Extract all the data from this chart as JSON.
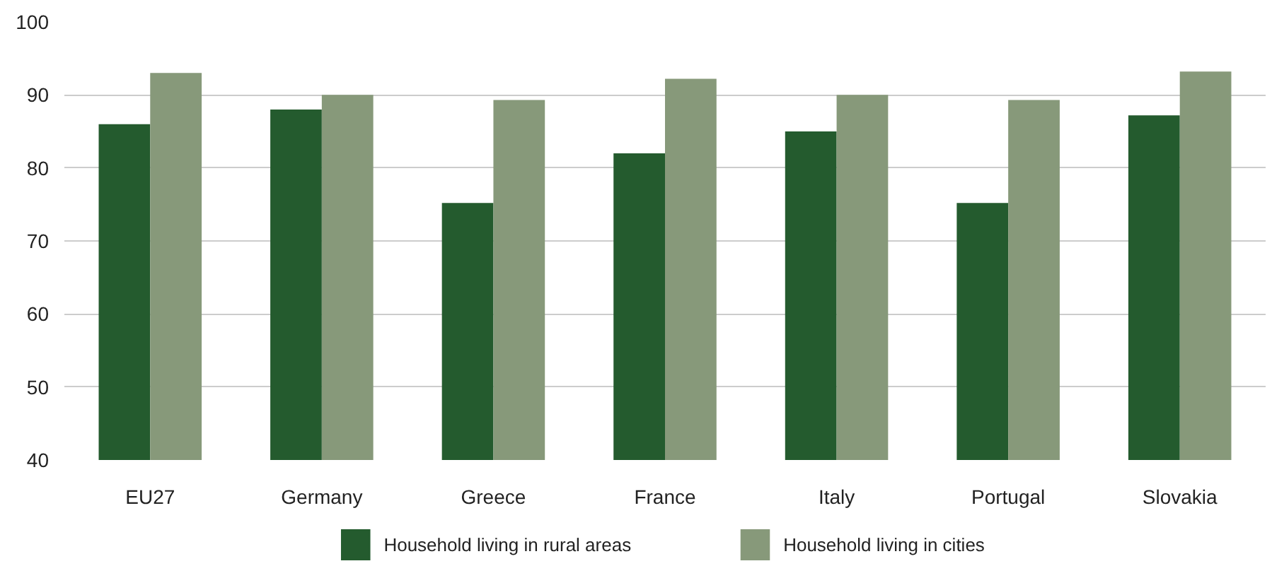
{
  "chart_data": {
    "type": "bar",
    "categories": [
      "EU27",
      "Germany",
      "Greece",
      "France",
      "Italy",
      "Portugal",
      "Slovakia"
    ],
    "series": [
      {
        "name": "Household living in rural areas",
        "color": "#245b2e",
        "values": [
          86,
          88,
          75.2,
          82,
          85,
          75.2,
          87.2
        ]
      },
      {
        "name": "Household living in cities",
        "color": "#87997a",
        "values": [
          93,
          90,
          89.3,
          92.2,
          90,
          89.3,
          93.2
        ]
      }
    ],
    "ylim": [
      40,
      100
    ],
    "yticks": [
      40,
      50,
      60,
      70,
      80,
      90,
      100
    ],
    "grid": "y",
    "legend": "bottom"
  }
}
